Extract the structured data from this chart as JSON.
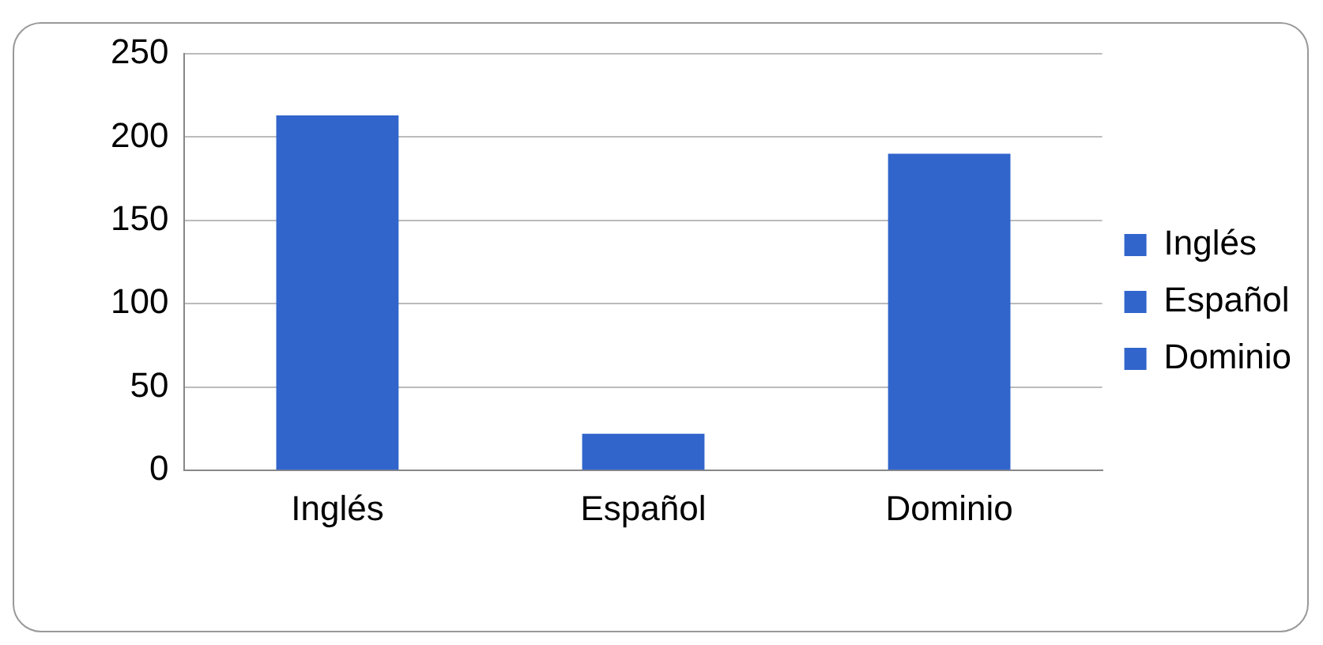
{
  "chart_data": {
    "type": "bar",
    "categories": [
      "Inglés",
      "Español",
      "Dominio"
    ],
    "series": [
      {
        "name": "Inglés",
        "color": "#3165cc",
        "values": [
          213,
          null,
          null
        ]
      },
      {
        "name": "Español",
        "color": "#3165cc",
        "values": [
          null,
          22,
          null
        ]
      },
      {
        "name": "Dominio",
        "color": "#3165cc",
        "values": [
          null,
          null,
          190
        ]
      }
    ],
    "ylim": [
      0,
      250
    ],
    "yticks": [
      0,
      50,
      100,
      150,
      200,
      250
    ],
    "grid": "y",
    "legend": "right"
  }
}
